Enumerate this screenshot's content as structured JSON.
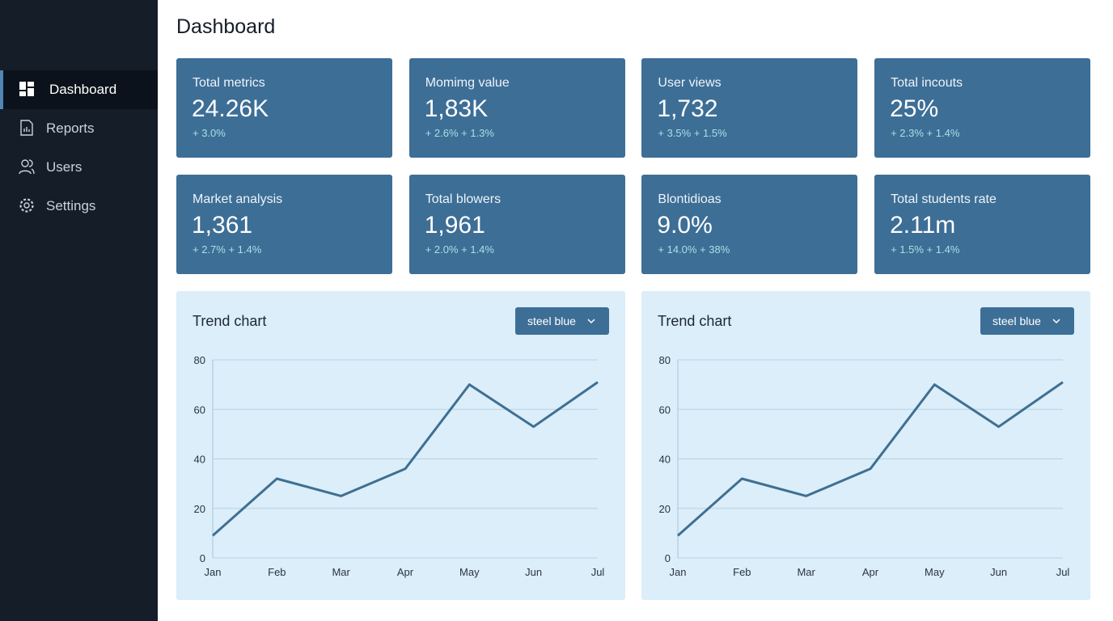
{
  "sidebar": {
    "active_index": 0,
    "items": [
      "Dashboard",
      "Reports",
      "Users",
      "Settings"
    ]
  },
  "header": {
    "title": "Dashboard"
  },
  "cards": [
    {
      "label": "Total metrics",
      "value": "24.26K",
      "change": "+ 3.0%"
    },
    {
      "label": "Momimg value",
      "value": "1,83K",
      "change": "+ 2.6% + 1.3%"
    },
    {
      "label": "User views",
      "value": "1,732",
      "change": "+ 3.5% + 1.5%"
    },
    {
      "label": "Total incouts",
      "value": "25%",
      "change": "+ 2.3% + 1.4%"
    },
    {
      "label": "Market analysis",
      "value": "1,361",
      "change": "+ 2.7% + 1.4%"
    },
    {
      "label": "Total blowers",
      "value": "1,961",
      "change": "+ 2.0% + 1.4%"
    },
    {
      "label": "Blontidioas",
      "value": "9.0%",
      "change": "+ 14.0% + 38%"
    },
    {
      "label": "Total students rate",
      "value": "2.11m",
      "change": "+ 1.5% + 1.4%"
    }
  ],
  "chart_data": [
    {
      "type": "line",
      "title": "Trend chart",
      "dropdown": "steel blue",
      "categories": [
        "Jan",
        "Feb",
        "Mar",
        "Apr",
        "May",
        "Jun",
        "Jul"
      ],
      "values": [
        9,
        32,
        25,
        36,
        70,
        53,
        71
      ],
      "color": "#3f6f92",
      "ylim": [
        0,
        80
      ],
      "yticks": [
        0,
        20,
        40,
        60,
        80
      ],
      "grid": true
    },
    {
      "type": "line",
      "title": "Trend chart",
      "dropdown": "steel blue",
      "categories": [
        "Jan",
        "Feb",
        "Mar",
        "Apr",
        "May",
        "Jun",
        "Jul"
      ],
      "values": [
        9,
        32,
        25,
        36,
        70,
        53,
        71
      ],
      "color": "#3f6f92",
      "ylim": [
        0,
        80
      ],
      "yticks": [
        0,
        20,
        40,
        60,
        80
      ],
      "grid": true
    }
  ]
}
